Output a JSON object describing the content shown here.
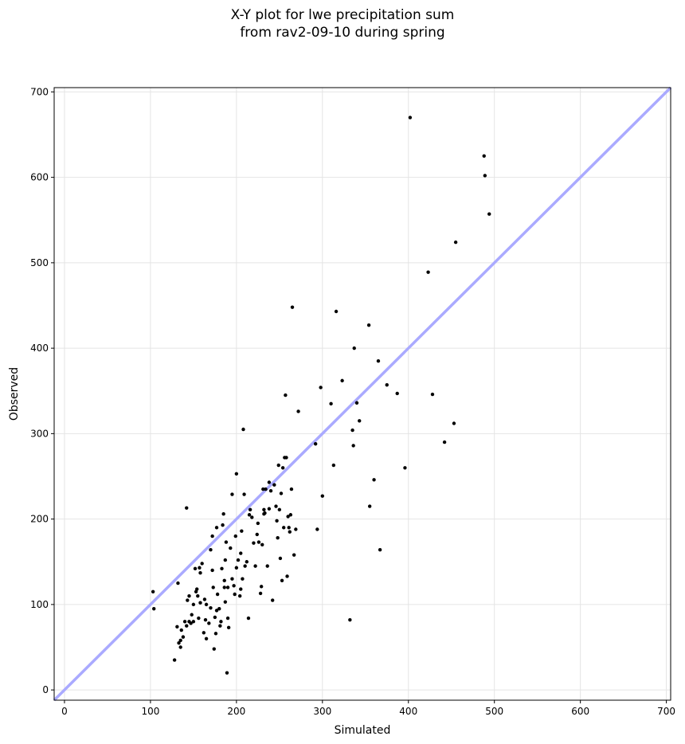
{
  "chart_data": {
    "type": "scatter",
    "title_line1": "X-Y plot for lwe precipitation sum",
    "title_line2": "from rav2-09-10 during spring",
    "xlabel": "Simulated",
    "ylabel": "Observed",
    "xlim": [
      -12,
      705
    ],
    "ylim": [
      -12,
      705
    ],
    "xticks": [
      0,
      100,
      200,
      300,
      400,
      500,
      600,
      700
    ],
    "yticks": [
      0,
      100,
      200,
      300,
      400,
      500,
      600,
      700
    ],
    "grid": true,
    "reference_line": {
      "type": "y=x",
      "color": "#aaaaff"
    },
    "point_color": "#000000",
    "x": [
      103,
      104,
      132,
      142,
      128,
      131,
      133,
      135,
      136,
      138,
      140,
      142,
      143,
      145,
      147,
      150,
      152,
      153,
      154,
      155,
      156,
      157,
      158,
      160,
      162,
      163,
      164,
      165,
      168,
      170,
      172,
      173,
      174,
      175,
      176,
      177,
      178,
      180,
      182,
      183,
      184,
      185,
      186,
      187,
      188,
      189,
      190,
      191,
      193,
      195,
      197,
      198,
      199,
      200,
      202,
      204,
      205,
      206,
      207,
      208,
      209,
      210,
      212,
      214,
      216,
      218,
      220,
      222,
      224,
      226,
      228,
      229,
      230,
      231,
      232,
      233,
      234,
      236,
      238,
      240,
      242,
      244,
      246,
      247,
      248,
      249,
      250,
      251,
      252,
      253,
      254,
      255,
      256,
      257,
      258,
      259,
      260,
      261,
      262,
      263,
      264,
      265,
      267,
      269,
      272,
      292,
      294,
      298,
      300,
      310,
      313,
      316,
      323,
      332,
      335,
      336,
      337,
      340,
      343,
      354,
      355,
      360,
      365,
      367,
      375,
      387,
      396,
      402,
      423,
      428,
      442,
      453,
      455,
      488,
      489,
      494,
      145,
      150,
      135,
      148,
      172,
      177,
      187,
      181,
      190,
      195,
      200,
      170,
      165,
      158,
      205,
      215,
      225,
      232,
      238,
      186
    ],
    "y": [
      115,
      95,
      125,
      213,
      35,
      74,
      55,
      50,
      70,
      62,
      80,
      75,
      105,
      80,
      78,
      80,
      142,
      115,
      118,
      110,
      84,
      143,
      137,
      148,
      67,
      106,
      82,
      60,
      78,
      164,
      140,
      120,
      48,
      85,
      66,
      190,
      112,
      95,
      80,
      142,
      193,
      206,
      120,
      152,
      173,
      20,
      84,
      73,
      166,
      229,
      122,
      112,
      180,
      253,
      152,
      110,
      160,
      186,
      130,
      305,
      229,
      145,
      150,
      84,
      211,
      202,
      172,
      145,
      182,
      173,
      113,
      121,
      170,
      235,
      211,
      207,
      235,
      145,
      243,
      233,
      105,
      240,
      215,
      198,
      178,
      263,
      211,
      154,
      230,
      128,
      260,
      190,
      272,
      345,
      272,
      133,
      203,
      190,
      185,
      205,
      235,
      448,
      158,
      188,
      326,
      288,
      188,
      354,
      227,
      335,
      263,
      443,
      362,
      82,
      304,
      286,
      400,
      336,
      315,
      427,
      215,
      246,
      385,
      164,
      357,
      347,
      260,
      670,
      489,
      346,
      290,
      312,
      524,
      625,
      602,
      557,
      110,
      100,
      58,
      88,
      180,
      93,
      103,
      75,
      120,
      130,
      143,
      96,
      100,
      102,
      118,
      205,
      195,
      206,
      212,
      128
    ]
  }
}
